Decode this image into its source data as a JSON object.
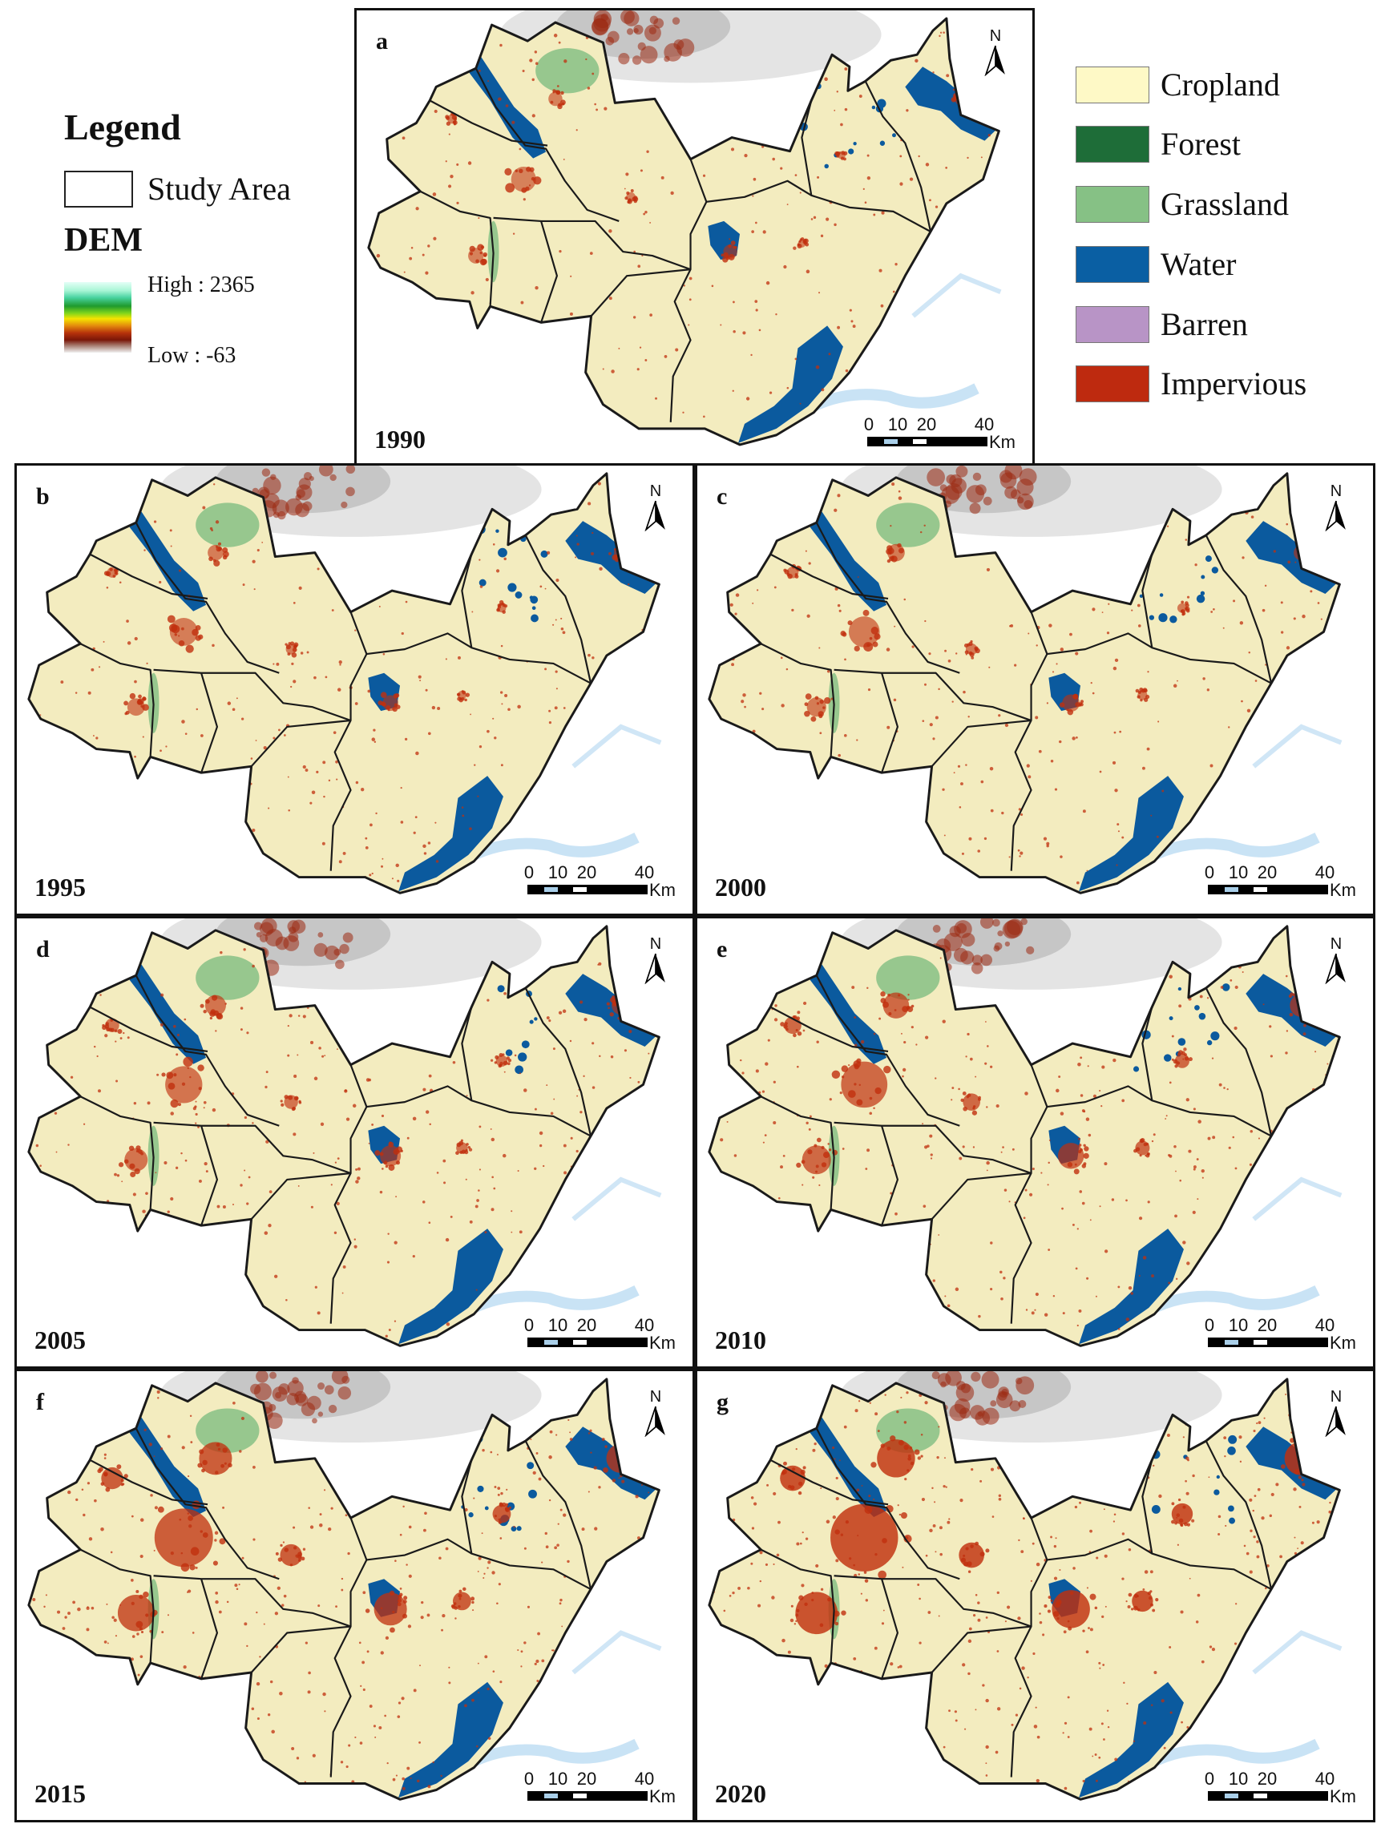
{
  "legend": {
    "title": "Legend",
    "study_area_label": "Study Area",
    "dem_title": "DEM",
    "dem_high": "High : 2365",
    "dem_low": "Low : -63",
    "land_cover": [
      {
        "label": "Cropland",
        "color": "#fef9c6"
      },
      {
        "label": "Forest",
        "color": "#1e6d38"
      },
      {
        "label": "Grassland",
        "color": "#86c185"
      },
      {
        "label": "Water",
        "color": "#0a5fa3"
      },
      {
        "label": "Barren",
        "color": "#b894c6"
      },
      {
        "label": "Impervious",
        "color": "#be2a0f"
      }
    ]
  },
  "colors": {
    "cropland": "#f3ecbf",
    "forest": "#1e6d38",
    "grassland": "#86c185",
    "water": "#0b5a9e",
    "impervious": "#c0300e",
    "boundary": "#1a1a1a",
    "dem_high": "#9c2a12",
    "river_light": "#bcdcf2"
  },
  "north_label": "N",
  "scale_bar": {
    "ticks": [
      "0",
      "10",
      "20",
      "40"
    ],
    "unit": "Km"
  },
  "panels": [
    {
      "letter": "a",
      "year": "1990",
      "urban_level": 0.2
    },
    {
      "letter": "b",
      "year": "1995",
      "urban_level": 0.25
    },
    {
      "letter": "c",
      "year": "2000",
      "urban_level": 0.3
    },
    {
      "letter": "d",
      "year": "2005",
      "urban_level": 0.4
    },
    {
      "letter": "e",
      "year": "2010",
      "urban_level": 0.55
    },
    {
      "letter": "f",
      "year": "2015",
      "urban_level": 0.75
    },
    {
      "letter": "g",
      "year": "2020",
      "urban_level": 0.9
    }
  ]
}
